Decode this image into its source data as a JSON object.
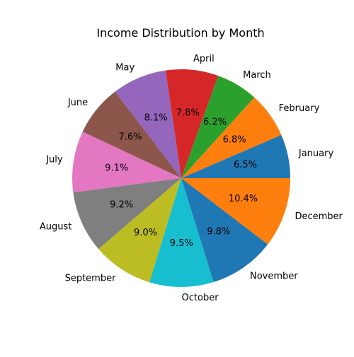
{
  "chart_data": {
    "type": "pie",
    "title": "Income Distribution by Month",
    "start_angle_deg": 0,
    "direction": "counterclockwise",
    "slices": [
      {
        "label": "January",
        "value": 6.5,
        "pct_label": "6.5%",
        "color": "#1f77b4"
      },
      {
        "label": "February",
        "value": 6.8,
        "pct_label": "6.8%",
        "color": "#ff7f0e"
      },
      {
        "label": "March",
        "value": 6.2,
        "pct_label": "6.2%",
        "color": "#2ca02c"
      },
      {
        "label": "April",
        "value": 7.8,
        "pct_label": "7.8%",
        "color": "#d62728"
      },
      {
        "label": "May",
        "value": 8.1,
        "pct_label": "8.1%",
        "color": "#9467bd"
      },
      {
        "label": "June",
        "value": 7.6,
        "pct_label": "7.6%",
        "color": "#8c564b"
      },
      {
        "label": "July",
        "value": 9.1,
        "pct_label": "9.1%",
        "color": "#e377c2"
      },
      {
        "label": "August",
        "value": 9.2,
        "pct_label": "9.2%",
        "color": "#7f7f7f"
      },
      {
        "label": "September",
        "value": 9.0,
        "pct_label": "9.0%",
        "color": "#bcbd22"
      },
      {
        "label": "October",
        "value": 9.5,
        "pct_label": "9.5%",
        "color": "#17becf"
      },
      {
        "label": "November",
        "value": 9.8,
        "pct_label": "9.8%",
        "color": "#1f77b4"
      },
      {
        "label": "December",
        "value": 10.4,
        "pct_label": "10.4%",
        "color": "#ff7f0e"
      }
    ]
  }
}
